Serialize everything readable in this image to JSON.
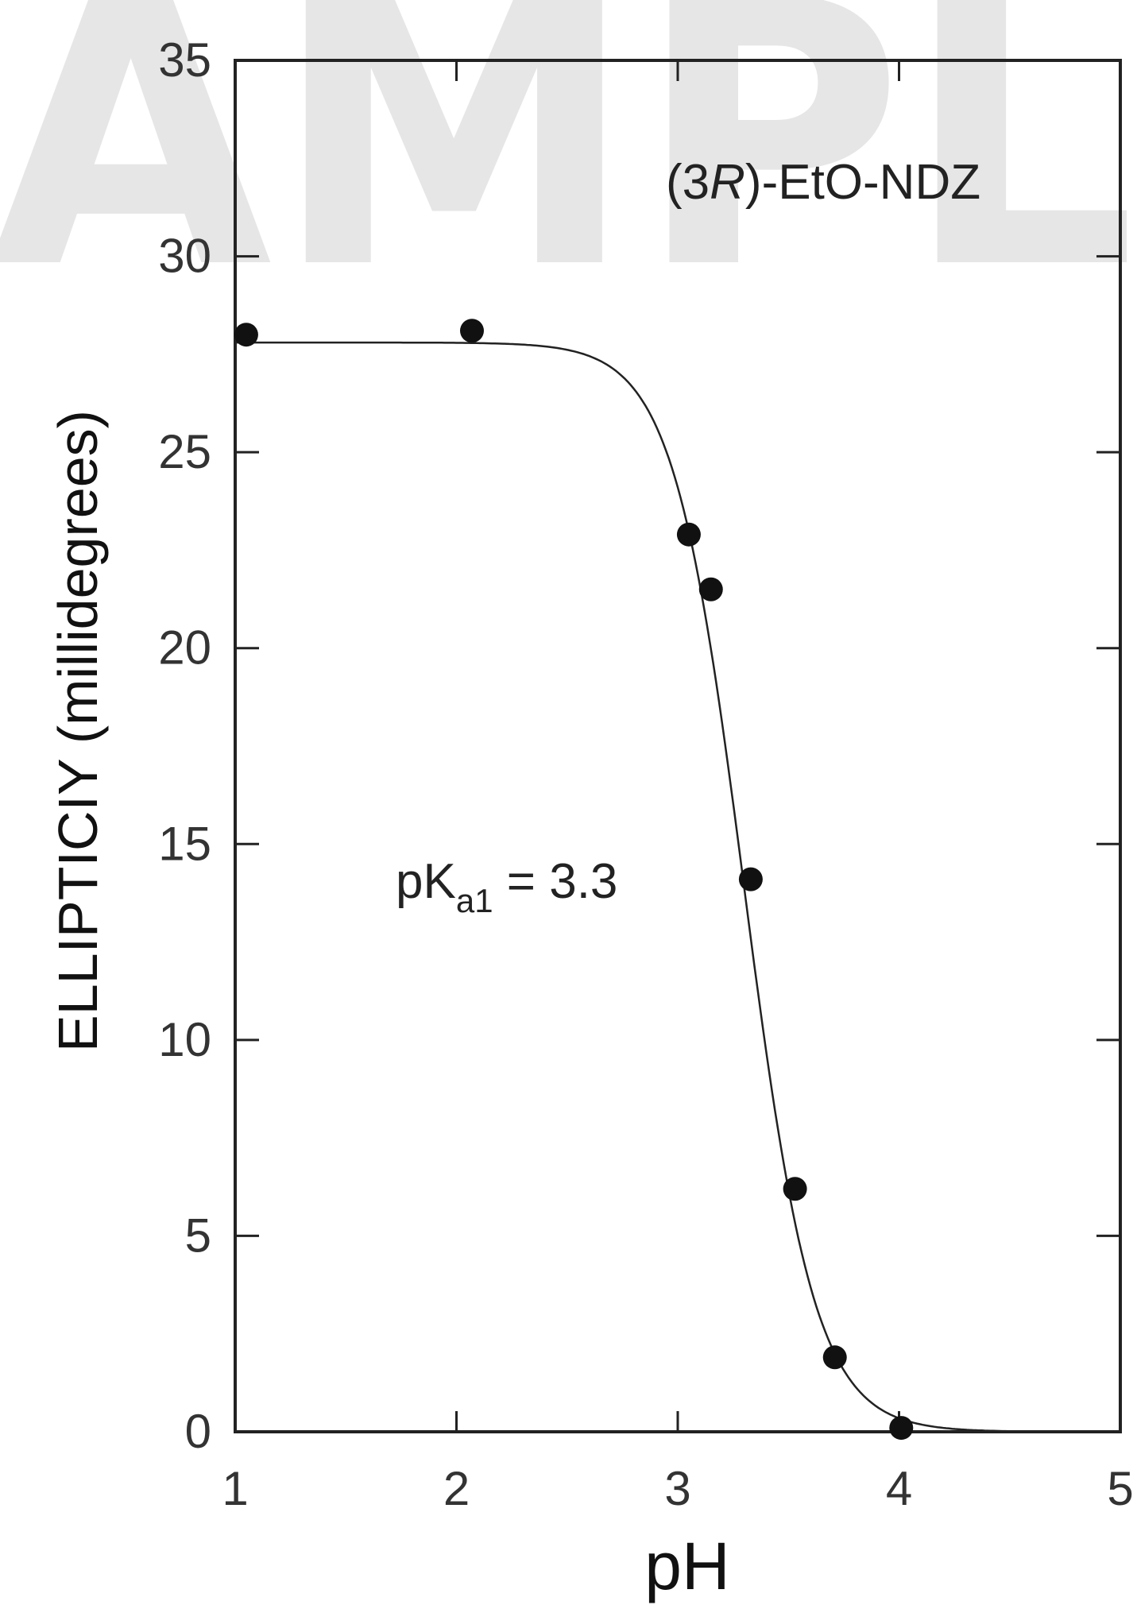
{
  "chart_data": {
    "type": "scatter",
    "title": "",
    "xlabel": "pH",
    "ylabel": "ELLIPTICIY (millidegrees)",
    "xlim": [
      1,
      5
    ],
    "ylim": [
      0,
      35
    ],
    "x_ticks": [
      1,
      2,
      3,
      4,
      5
    ],
    "y_ticks": [
      0,
      5,
      10,
      15,
      20,
      25,
      30,
      35
    ],
    "x_tick_labels": [
      "1",
      "2",
      "3",
      "4",
      "5"
    ],
    "y_tick_labels": [
      "0",
      "5",
      "10",
      "15",
      "20",
      "25",
      "30",
      "35"
    ],
    "grid": false,
    "series": [
      {
        "points": [
          {
            "x": 1.05,
            "y": 28.0
          },
          {
            "x": 2.07,
            "y": 28.1
          },
          {
            "x": 3.05,
            "y": 22.9
          },
          {
            "x": 3.15,
            "y": 21.5
          },
          {
            "x": 3.33,
            "y": 14.1
          },
          {
            "x": 3.53,
            "y": 6.2
          },
          {
            "x": 3.71,
            "y": 1.9
          },
          {
            "x": 4.01,
            "y": 0.1
          }
        ]
      }
    ],
    "fit_curve": {
      "model": "sigmoid",
      "top": 27.8,
      "bottom": 0,
      "midpoint_pH": 3.3,
      "slope": 0.16
    },
    "annotations": {
      "compound_prefix": "(3",
      "compound_italic": "R",
      "compound_suffix": ")-EtO-NDZ",
      "pka_prefix": "pK",
      "pka_subscript": "a1",
      "pka_value_text": " = 3.3"
    },
    "watermark_text": "SAMPLE"
  }
}
